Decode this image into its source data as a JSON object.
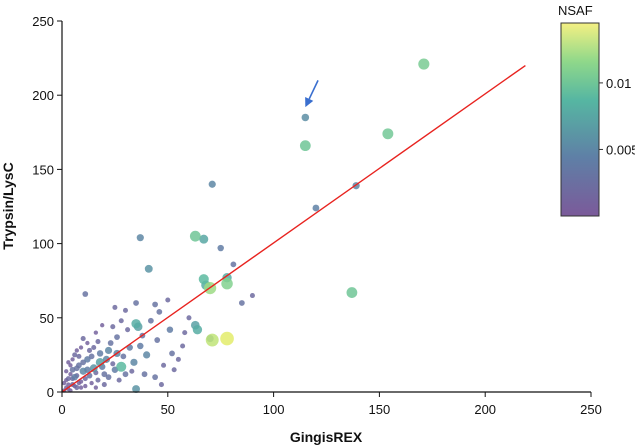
{
  "chart_data": {
    "type": "scatter",
    "title": "",
    "xlabel": "GingisREX",
    "ylabel": "Trypsin/LysC",
    "xlim": [
      0,
      250
    ],
    "ylim": [
      0,
      250
    ],
    "x_ticks": [
      "0",
      "50",
      "100",
      "150",
      "200",
      "250"
    ],
    "y_ticks": [
      "0",
      "50",
      "100",
      "150",
      "200",
      "250"
    ],
    "fit_line": {
      "x": [
        0,
        219
      ],
      "y": [
        0,
        220
      ],
      "color": "#e8231f"
    },
    "annotation": {
      "type": "arrow",
      "from": [
        121,
        210
      ],
      "to": [
        115,
        192
      ],
      "color": "#3a6fcf"
    },
    "colorbar": {
      "title": "NSAF",
      "min": 0,
      "max": 0.0145,
      "tick_values": [
        0.005,
        0.01
      ],
      "tick_labels": [
        "0.005",
        "0.01"
      ],
      "colors": [
        "#440154",
        "#3b528b",
        "#21908d",
        "#5dc962",
        "#fde725"
      ]
    },
    "points": [
      {
        "x": 171,
        "y": 221,
        "nsaf": 0.0105
      },
      {
        "x": 115,
        "y": 185,
        "nsaf": 0.0055
      },
      {
        "x": 154,
        "y": 174,
        "nsaf": 0.0102
      },
      {
        "x": 115,
        "y": 166,
        "nsaf": 0.01
      },
      {
        "x": 71,
        "y": 140,
        "nsaf": 0.005
      },
      {
        "x": 139,
        "y": 139,
        "nsaf": 0.005
      },
      {
        "x": 120,
        "y": 124,
        "nsaf": 0.0045
      },
      {
        "x": 63,
        "y": 105,
        "nsaf": 0.01
      },
      {
        "x": 67,
        "y": 103,
        "nsaf": 0.0075
      },
      {
        "x": 37,
        "y": 104,
        "nsaf": 0.005
      },
      {
        "x": 75,
        "y": 97,
        "nsaf": 0.004
      },
      {
        "x": 41,
        "y": 83,
        "nsaf": 0.006
      },
      {
        "x": 81,
        "y": 86,
        "nsaf": 0.003
      },
      {
        "x": 67,
        "y": 76,
        "nsaf": 0.009
      },
      {
        "x": 78,
        "y": 77,
        "nsaf": 0.008
      },
      {
        "x": 78,
        "y": 73,
        "nsaf": 0.011
      },
      {
        "x": 70,
        "y": 70,
        "nsaf": 0.012
      },
      {
        "x": 68,
        "y": 72,
        "nsaf": 0.008
      },
      {
        "x": 137,
        "y": 67,
        "nsaf": 0.01
      },
      {
        "x": 11,
        "y": 66,
        "nsaf": 0.003
      },
      {
        "x": 63,
        "y": 45,
        "nsaf": 0.007
      },
      {
        "x": 64,
        "y": 42,
        "nsaf": 0.008
      },
      {
        "x": 78,
        "y": 36,
        "nsaf": 0.014
      },
      {
        "x": 71,
        "y": 35,
        "nsaf": 0.013
      },
      {
        "x": 70,
        "y": 36,
        "nsaf": 0.005
      },
      {
        "x": 35,
        "y": 46,
        "nsaf": 0.008
      },
      {
        "x": 36,
        "y": 44,
        "nsaf": 0.007
      },
      {
        "x": 46,
        "y": 54,
        "nsaf": 0.003
      },
      {
        "x": 51,
        "y": 42,
        "nsaf": 0.004
      },
      {
        "x": 45,
        "y": 35,
        "nsaf": 0.003
      },
      {
        "x": 30,
        "y": 55,
        "nsaf": 0.002
      },
      {
        "x": 35,
        "y": 60,
        "nsaf": 0.003
      },
      {
        "x": 25,
        "y": 57,
        "nsaf": 0.002
      },
      {
        "x": 28,
        "y": 17,
        "nsaf": 0.009
      },
      {
        "x": 35,
        "y": 2,
        "nsaf": 0.006
      },
      {
        "x": 44,
        "y": 10,
        "nsaf": 0.003
      },
      {
        "x": 52,
        "y": 26,
        "nsaf": 0.003
      },
      {
        "x": 57,
        "y": 31,
        "nsaf": 0.002
      },
      {
        "x": 40,
        "y": 25,
        "nsaf": 0.005
      },
      {
        "x": 32,
        "y": 30,
        "nsaf": 0.004
      },
      {
        "x": 26,
        "y": 37,
        "nsaf": 0.003
      },
      {
        "x": 22,
        "y": 28,
        "nsaf": 0.005
      },
      {
        "x": 18,
        "y": 20,
        "nsaf": 0.007
      },
      {
        "x": 15,
        "y": 16,
        "nsaf": 0.006
      },
      {
        "x": 12,
        "y": 22,
        "nsaf": 0.004
      },
      {
        "x": 10,
        "y": 14,
        "nsaf": 0.005
      },
      {
        "x": 8,
        "y": 18,
        "nsaf": 0.003
      },
      {
        "x": 6,
        "y": 10,
        "nsaf": 0.004
      },
      {
        "x": 5,
        "y": 5,
        "nsaf": 0.002
      },
      {
        "x": 3,
        "y": 2,
        "nsaf": 0.001
      },
      {
        "x": 2,
        "y": 8,
        "nsaf": 0.001
      },
      {
        "x": 7,
        "y": 3,
        "nsaf": 0.002
      },
      {
        "x": 9,
        "y": 7,
        "nsaf": 0.001
      },
      {
        "x": 4,
        "y": 12,
        "nsaf": 0.001
      },
      {
        "x": 11,
        "y": 9,
        "nsaf": 0.002
      },
      {
        "x": 14,
        "y": 6,
        "nsaf": 0.001
      },
      {
        "x": 13,
        "y": 28,
        "nsaf": 0.002
      },
      {
        "x": 17,
        "y": 34,
        "nsaf": 0.002
      },
      {
        "x": 20,
        "y": 12,
        "nsaf": 0.003
      },
      {
        "x": 24,
        "y": 19,
        "nsaf": 0.002
      },
      {
        "x": 16,
        "y": 40,
        "nsaf": 0.001
      },
      {
        "x": 9,
        "y": 30,
        "nsaf": 0.001
      },
      {
        "x": 6,
        "y": 25,
        "nsaf": 0.002
      },
      {
        "x": 19,
        "y": 45,
        "nsaf": 0.001
      },
      {
        "x": 27,
        "y": 8,
        "nsaf": 0.002
      },
      {
        "x": 33,
        "y": 14,
        "nsaf": 0.002
      },
      {
        "x": 38,
        "y": 38,
        "nsaf": 0.003
      },
      {
        "x": 42,
        "y": 48,
        "nsaf": 0.003
      },
      {
        "x": 48,
        "y": 18,
        "nsaf": 0.002
      },
      {
        "x": 55,
        "y": 22,
        "nsaf": 0.002
      },
      {
        "x": 60,
        "y": 50,
        "nsaf": 0.002
      },
      {
        "x": 1,
        "y": 1,
        "nsaf": 0.001
      },
      {
        "x": 2,
        "y": 3,
        "nsaf": 0.001
      },
      {
        "x": 3,
        "y": 5,
        "nsaf": 0.001
      },
      {
        "x": 4,
        "y": 1,
        "nsaf": 0.001
      },
      {
        "x": 5,
        "y": 9,
        "nsaf": 0.002
      },
      {
        "x": 6,
        "y": 4,
        "nsaf": 0.001
      },
      {
        "x": 7,
        "y": 11,
        "nsaf": 0.002
      },
      {
        "x": 8,
        "y": 6,
        "nsaf": 0.001
      },
      {
        "x": 10,
        "y": 20,
        "nsaf": 0.003
      },
      {
        "x": 12,
        "y": 15,
        "nsaf": 0.004
      },
      {
        "x": 14,
        "y": 24,
        "nsaf": 0.003
      },
      {
        "x": 16,
        "y": 13,
        "nsaf": 0.002
      },
      {
        "x": 18,
        "y": 26,
        "nsaf": 0.004
      },
      {
        "x": 21,
        "y": 22,
        "nsaf": 0.005
      },
      {
        "x": 23,
        "y": 33,
        "nsaf": 0.003
      },
      {
        "x": 25,
        "y": 15,
        "nsaf": 0.004
      },
      {
        "x": 29,
        "y": 24,
        "nsaf": 0.003
      },
      {
        "x": 31,
        "y": 42,
        "nsaf": 0.002
      },
      {
        "x": 34,
        "y": 20,
        "nsaf": 0.005
      },
      {
        "x": 37,
        "y": 31,
        "nsaf": 0.004
      },
      {
        "x": 1,
        "y": 6,
        "nsaf": 0.001
      },
      {
        "x": 2,
        "y": 14,
        "nsaf": 0.001
      },
      {
        "x": 3,
        "y": 9,
        "nsaf": 0.002
      },
      {
        "x": 4,
        "y": 18,
        "nsaf": 0.001
      },
      {
        "x": 5,
        "y": 22,
        "nsaf": 0.001
      },
      {
        "x": 7,
        "y": 16,
        "nsaf": 0.003
      },
      {
        "x": 8,
        "y": 24,
        "nsaf": 0.002
      },
      {
        "x": 9,
        "y": 3,
        "nsaf": 0.001
      },
      {
        "x": 11,
        "y": 4,
        "nsaf": 0.001
      },
      {
        "x": 13,
        "y": 11,
        "nsaf": 0.003
      },
      {
        "x": 15,
        "y": 30,
        "nsaf": 0.002
      },
      {
        "x": 17,
        "y": 8,
        "nsaf": 0.002
      },
      {
        "x": 19,
        "y": 17,
        "nsaf": 0.004
      },
      {
        "x": 22,
        "y": 10,
        "nsaf": 0.003
      },
      {
        "x": 26,
        "y": 26,
        "nsaf": 0.005
      },
      {
        "x": 30,
        "y": 12,
        "nsaf": 0.003
      },
      {
        "x": 10,
        "y": 36,
        "nsaf": 0.002
      },
      {
        "x": 12,
        "y": 33,
        "nsaf": 0.001
      },
      {
        "x": 7,
        "y": 28,
        "nsaf": 0.001
      },
      {
        "x": 5,
        "y": 15,
        "nsaf": 0.003
      },
      {
        "x": 3,
        "y": 20,
        "nsaf": 0.001
      },
      {
        "x": 20,
        "y": 5,
        "nsaf": 0.002
      },
      {
        "x": 16,
        "y": 3,
        "nsaf": 0.001
      },
      {
        "x": 24,
        "y": 44,
        "nsaf": 0.002
      },
      {
        "x": 28,
        "y": 48,
        "nsaf": 0.002
      },
      {
        "x": 44,
        "y": 59,
        "nsaf": 0.003
      },
      {
        "x": 50,
        "y": 62,
        "nsaf": 0.002
      },
      {
        "x": 58,
        "y": 40,
        "nsaf": 0.002
      },
      {
        "x": 85,
        "y": 60,
        "nsaf": 0.003
      },
      {
        "x": 90,
        "y": 65,
        "nsaf": 0.002
      },
      {
        "x": 53,
        "y": 15,
        "nsaf": 0.002
      },
      {
        "x": 47,
        "y": 5,
        "nsaf": 0.002
      },
      {
        "x": 39,
        "y": 12,
        "nsaf": 0.003
      }
    ]
  }
}
